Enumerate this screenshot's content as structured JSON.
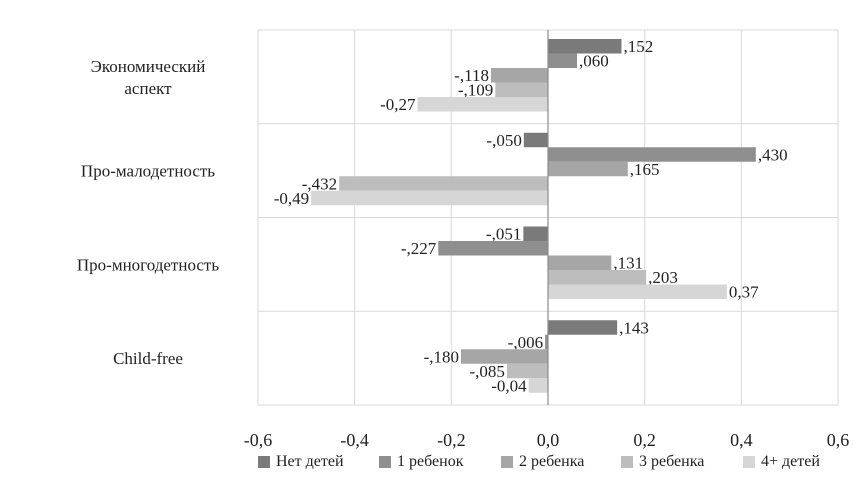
{
  "chart_data": {
    "type": "bar",
    "orientation": "horizontal",
    "categories": [
      [
        "Экономический",
        "аспект"
      ],
      [
        "Про-малодетность"
      ],
      [
        "Про-многодетность"
      ],
      [
        "Child-free"
      ]
    ],
    "series": [
      {
        "name": "Нет детей",
        "color": "#7a7a7a",
        "values": [
          0.152,
          -0.05,
          -0.051,
          0.143
        ],
        "labels": [
          ",152",
          "-,050",
          "-,051",
          ",143"
        ]
      },
      {
        "name": "1 ребенок",
        "color": "#8f8f8f",
        "values": [
          0.06,
          0.43,
          -0.227,
          -0.006
        ],
        "labels": [
          ",060",
          ",430",
          "-,227",
          "-,006"
        ]
      },
      {
        "name": "2 ребенка",
        "color": "#a6a6a6",
        "values": [
          -0.118,
          0.165,
          0.131,
          -0.18
        ],
        "labels": [
          "-,118",
          ",165",
          ",131",
          "-,180"
        ]
      },
      {
        "name": "3 ребенка",
        "color": "#bdbdbd",
        "values": [
          -0.109,
          -0.432,
          0.203,
          -0.085
        ],
        "labels": [
          "-,109",
          "-,432",
          ",203",
          "-,085"
        ]
      },
      {
        "name": "4+ детей",
        "color": "#d6d6d6",
        "values": [
          -0.27,
          -0.49,
          0.37,
          -0.04
        ],
        "labels": [
          "-0,27",
          "-0,49",
          "0,37",
          "-0,04"
        ]
      }
    ],
    "xlim": [
      -0.6,
      0.6
    ],
    "x_ticks": [
      "-0,6",
      "-0,4",
      "-0,2",
      "0,0",
      "0,2",
      "0,4",
      "0,6"
    ],
    "grid": true,
    "legend_position": "bottom"
  }
}
